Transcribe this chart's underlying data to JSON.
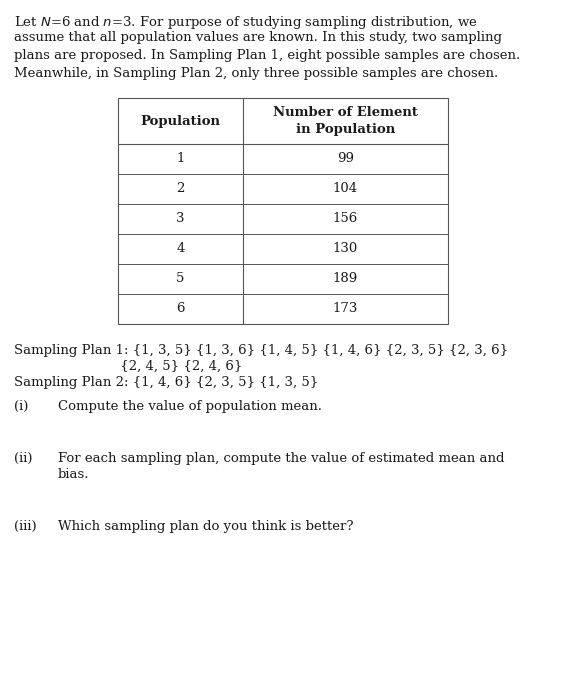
{
  "intro_lines": [
    "Let $N$=6 and $n$=3. For purpose of studying sampling distribution, we",
    "assume that all population values are known. In this study, two sampling",
    "plans are proposed. In Sampling Plan 1, eight possible samples are chosen.",
    "Meanwhile, in Sampling Plan 2, only three possible samples are chosen."
  ],
  "table_header_left": "Population",
  "table_header_right": "Number of Element\nin Population",
  "table_rows": [
    [
      "1",
      "99"
    ],
    [
      "2",
      "104"
    ],
    [
      "3",
      "156"
    ],
    [
      "4",
      "130"
    ],
    [
      "5",
      "189"
    ],
    [
      "6",
      "173"
    ]
  ],
  "sp1_line1": "Sampling Plan 1: {1, 3, 5} {1, 3, 6} {1, 4, 5} {1, 4, 6} {2, 3, 5} {2, 3, 6}",
  "sp1_line2": "                         {2, 4, 5} {2, 4, 6}",
  "sp2_line": "Sampling Plan 2: {1, 4, 6} {2, 3, 5} {1, 3, 5}",
  "q1_num": "(i)",
  "q1_text": "Compute the value of population mean.",
  "q2_num": "(ii)",
  "q2_line1": "For each sampling plan, compute the value of estimated mean and",
  "q2_line2": "bias.",
  "q3_num": "(iii)",
  "q3_text": "Which sampling plan do you think is better?",
  "bg_color": "#ffffff",
  "text_color": "#1a1a1a",
  "table_line_color": "#555555",
  "font_size": 9.5,
  "table_font_size": 9.5
}
